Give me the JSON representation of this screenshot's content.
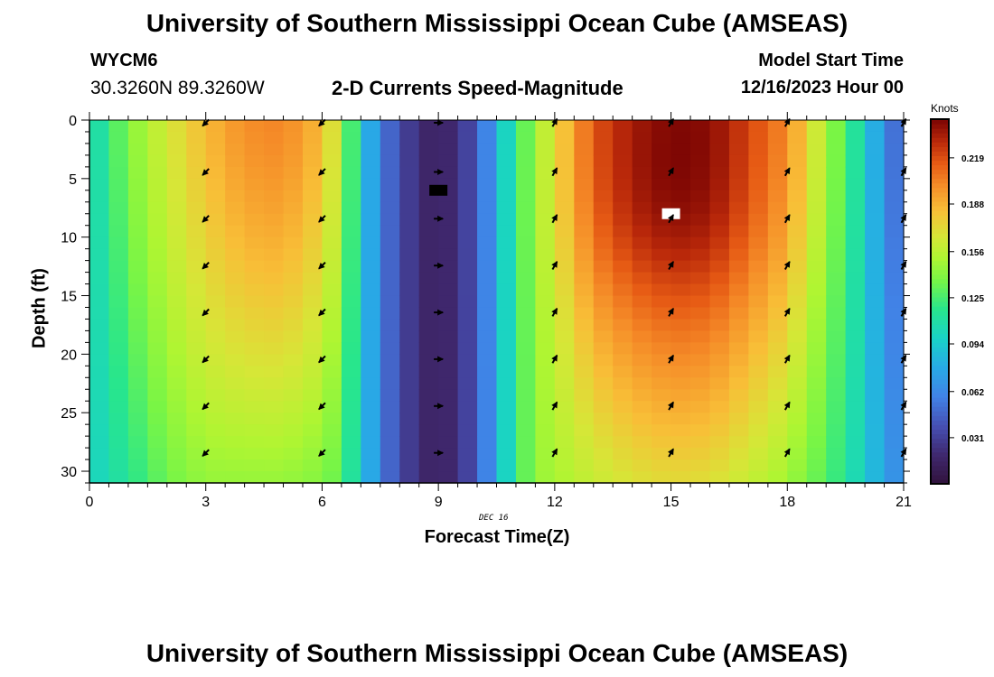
{
  "header": {
    "title": "University of Southern Mississippi Ocean Cube (AMSEAS)",
    "station": "WYCM6",
    "coords": "30.3260N  89.3260W",
    "subtitle": "2-D Currents Speed-Magnitude",
    "model_start_label": "Model Start Time",
    "model_start_value": "12/16/2023 Hour 00"
  },
  "footer": {
    "title": "University of Southern Mississippi Ocean Cube (AMSEAS)"
  },
  "chart_data": {
    "type": "heatmap",
    "title": "2-D Currents Speed-Magnitude",
    "xlabel": "Forecast Time(Z)",
    "ylabel": "Depth (ft)",
    "date_label": "DEC 16",
    "xlim": [
      0,
      21
    ],
    "ylim": [
      0,
      31
    ],
    "x_ticks": [
      0,
      3,
      6,
      9,
      12,
      15,
      18,
      21
    ],
    "y_ticks": [
      0,
      5,
      10,
      15,
      20,
      25,
      30
    ],
    "colorbar": {
      "label": "Knots",
      "range": [
        0.0,
        0.245
      ],
      "ticks": [
        "0.219",
        "0.188",
        "0.156",
        "0.125",
        "0.094",
        "0.062",
        "0.031"
      ],
      "tick_values": [
        0.219,
        0.188,
        0.156,
        0.125,
        0.094,
        0.062,
        0.031
      ]
    },
    "surface_speed_knots_by_hour": [
      {
        "hour": 0.0,
        "speed": 0.1
      },
      {
        "hour": 1.0,
        "speed": 0.14
      },
      {
        "hour": 2.0,
        "speed": 0.165
      },
      {
        "hour": 2.5,
        "speed": 0.175
      },
      {
        "hour": 3.0,
        "speed": 0.185
      },
      {
        "hour": 4.0,
        "speed": 0.2
      },
      {
        "hour": 5.0,
        "speed": 0.203
      },
      {
        "hour": 6.0,
        "speed": 0.185
      },
      {
        "hour": 6.5,
        "speed": 0.155
      },
      {
        "hour": 7.0,
        "speed": 0.095
      },
      {
        "hour": 7.5,
        "speed": 0.06
      },
      {
        "hour": 8.0,
        "speed": 0.035
      },
      {
        "hour": 9.0,
        "speed": 0.012
      },
      {
        "hour": 10.0,
        "speed": 0.04
      },
      {
        "hour": 10.5,
        "speed": 0.08
      },
      {
        "hour": 11.0,
        "speed": 0.12
      },
      {
        "hour": 11.5,
        "speed": 0.145
      },
      {
        "hour": 12.0,
        "speed": 0.17
      },
      {
        "hour": 13.0,
        "speed": 0.215
      },
      {
        "hour": 14.0,
        "speed": 0.232
      },
      {
        "hour": 15.0,
        "speed": 0.24
      },
      {
        "hour": 16.0,
        "speed": 0.238
      },
      {
        "hour": 17.0,
        "speed": 0.22
      },
      {
        "hour": 18.0,
        "speed": 0.2
      },
      {
        "hour": 18.5,
        "speed": 0.175
      },
      {
        "hour": 19.0,
        "speed": 0.15
      },
      {
        "hour": 19.5,
        "speed": 0.125
      },
      {
        "hour": 20.0,
        "speed": 0.1
      },
      {
        "hour": 20.5,
        "speed": 0.06
      },
      {
        "hour": 21.0,
        "speed": 0.045
      }
    ],
    "bottom_speed_knots_by_hour": [
      {
        "hour": 0.0,
        "speed": 0.098
      },
      {
        "hour": 1.0,
        "speed": 0.115
      },
      {
        "hour": 2.0,
        "speed": 0.135
      },
      {
        "hour": 3.0,
        "speed": 0.145
      },
      {
        "hour": 4.0,
        "speed": 0.145
      },
      {
        "hour": 5.0,
        "speed": 0.145
      },
      {
        "hour": 6.0,
        "speed": 0.14
      },
      {
        "hour": 6.5,
        "speed": 0.13
      },
      {
        "hour": 7.0,
        "speed": 0.095
      },
      {
        "hour": 7.5,
        "speed": 0.06
      },
      {
        "hour": 8.0,
        "speed": 0.035
      },
      {
        "hour": 9.0,
        "speed": 0.012
      },
      {
        "hour": 10.0,
        "speed": 0.04
      },
      {
        "hour": 10.5,
        "speed": 0.08
      },
      {
        "hour": 11.0,
        "speed": 0.12
      },
      {
        "hour": 11.5,
        "speed": 0.145
      },
      {
        "hour": 12.0,
        "speed": 0.15
      },
      {
        "hour": 13.0,
        "speed": 0.16
      },
      {
        "hour": 14.0,
        "speed": 0.168
      },
      {
        "hour": 15.0,
        "speed": 0.172
      },
      {
        "hour": 16.0,
        "speed": 0.17
      },
      {
        "hour": 17.0,
        "speed": 0.16
      },
      {
        "hour": 18.0,
        "speed": 0.148
      },
      {
        "hour": 19.0,
        "speed": 0.128
      },
      {
        "hour": 19.5,
        "speed": 0.115
      },
      {
        "hour": 20.0,
        "speed": 0.095
      },
      {
        "hour": 20.5,
        "speed": 0.075
      },
      {
        "hour": 21.0,
        "speed": 0.06
      }
    ],
    "peak_hour": 15.0,
    "peak_depth_ft": 8.0,
    "arrow_hours": [
      3,
      6,
      9,
      12,
      15,
      18,
      21
    ],
    "arrow_depths_ft": [
      0,
      4.2,
      8.2,
      12.2,
      16.2,
      20.2,
      24.2,
      28.2
    ],
    "arrow_directions_deg": {
      "3": 225,
      "6": 225,
      "9": 90,
      "12": 30,
      "15": 30,
      "18": 30,
      "21": 30
    },
    "markers": [
      {
        "hour": 9.0,
        "depth_ft": 6.0,
        "color": "#000000"
      },
      {
        "hour": 15.0,
        "depth_ft": 8.0,
        "color": "#ffffff"
      }
    ]
  }
}
